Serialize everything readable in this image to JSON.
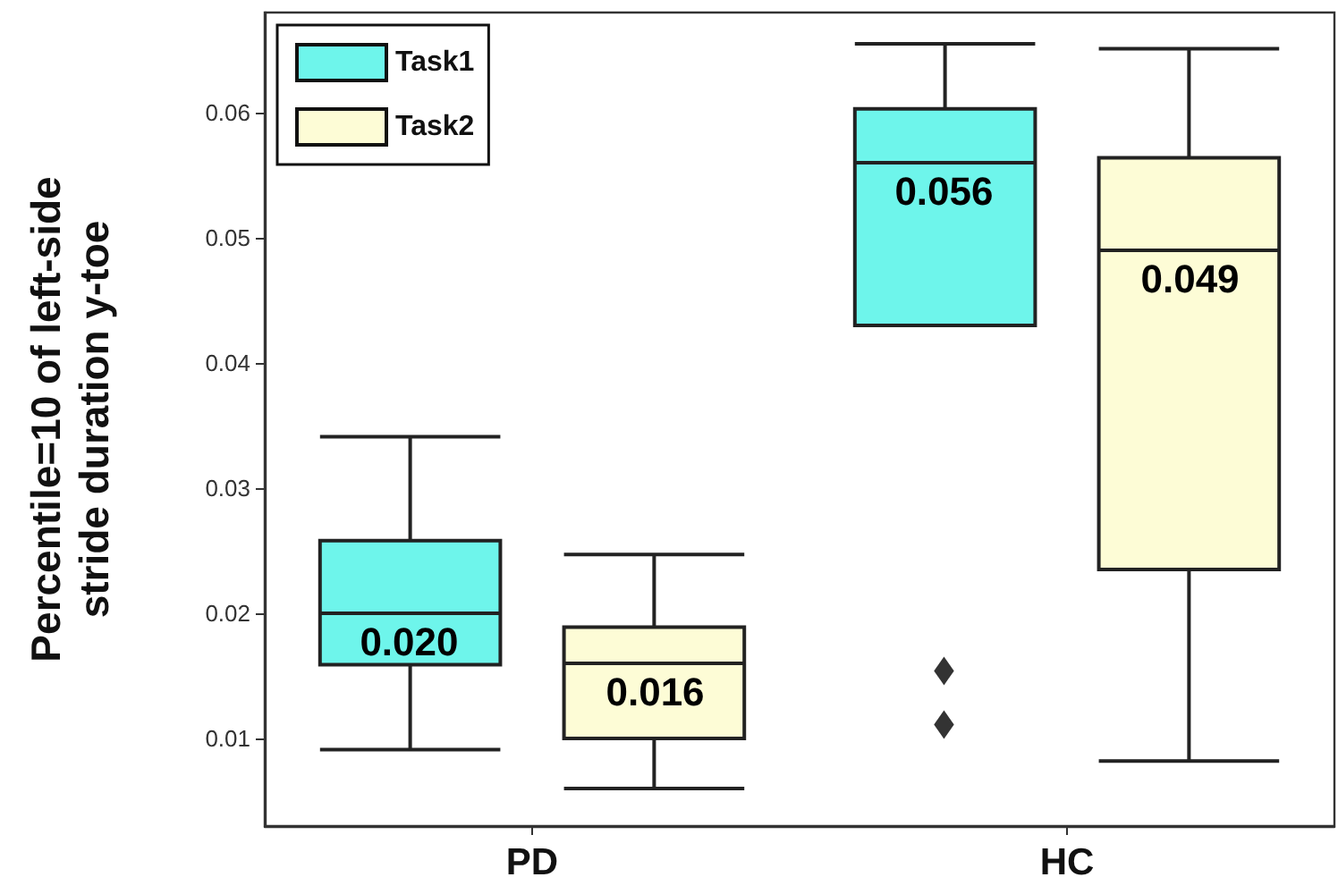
{
  "chart_data": {
    "type": "box",
    "ylabel": "Percentile=10 of left-side stride duration y-toe",
    "categories": [
      "PD",
      "HC"
    ],
    "series": [
      {
        "name": "Task1",
        "color": "#6ef5eb",
        "value_labels": [
          "0.020",
          "0.056"
        ],
        "boxes": [
          {
            "low": 0.0091,
            "q1": 0.0159,
            "median": 0.02,
            "q3": 0.0258,
            "high": 0.0341
          },
          {
            "low": 0.043,
            "q1": 0.043,
            "median": 0.056,
            "q3": 0.0603,
            "high": 0.0655,
            "outliers": [
              0.0154,
              0.0111
            ]
          }
        ]
      },
      {
        "name": "Task2",
        "color": "#fdfcd6",
        "value_labels": [
          "0.016",
          "0.049"
        ],
        "boxes": [
          {
            "low": 0.006,
            "q1": 0.01,
            "median": 0.016,
            "q3": 0.0189,
            "high": 0.0247
          },
          {
            "low": 0.0082,
            "q1": 0.0235,
            "median": 0.049,
            "q3": 0.0564,
            "high": 0.0651
          }
        ]
      }
    ],
    "ylim": [
      0.003,
      0.068
    ],
    "yticks": [
      0.01,
      0.02,
      0.03,
      0.04,
      0.05,
      0.06
    ],
    "grid": false,
    "legend": "top left",
    "marker": "diamond"
  }
}
